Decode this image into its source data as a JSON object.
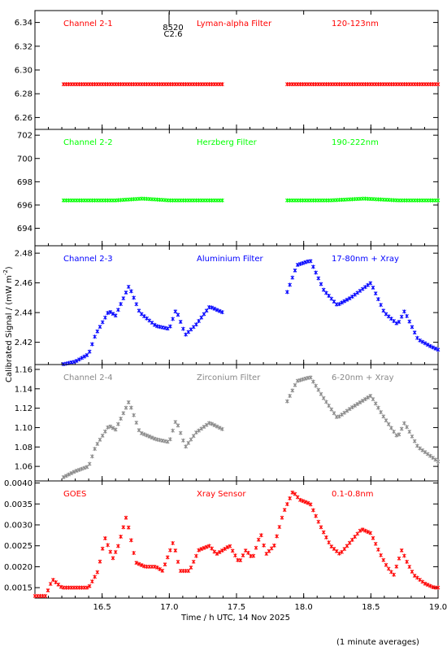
{
  "figure": {
    "ylabel_prefix": "Calibrated Signal / (mW m",
    "ylabel_exp": "-2",
    "ylabel_suffix": ")",
    "xlabel": "Time / h UTC, 14 Nov 2025",
    "footnote": "(1 minute averages)",
    "event_label_1": "8520",
    "event_label_2": "C2.6"
  },
  "chart_data": [
    {
      "type": "scatter",
      "color": "#ff0000",
      "labels": [
        "Channel 2-1",
        "Lyman-alpha Filter",
        "120-123nm"
      ],
      "ylim": [
        6.25,
        6.35
      ],
      "yticks": [
        "6.26",
        "6.28",
        "6.30",
        "6.32",
        "6.34"
      ],
      "xlim": [
        16.0,
        19.0
      ],
      "gap": [
        17.4,
        17.87
      ],
      "series": [
        {
          "x": [
            16.2,
            16.6,
            17.0,
            17.4,
            17.87,
            18.3,
            18.7,
            19.0
          ],
          "y": [
            6.288,
            6.288,
            6.288,
            6.288,
            6.288,
            6.288,
            6.288,
            6.288
          ]
        }
      ]
    },
    {
      "type": "scatter",
      "color": "#00ff00",
      "labels": [
        "Channel 2-2",
        "Herzberg Filter",
        "190-222nm"
      ],
      "ylim": [
        692.5,
        702.5
      ],
      "yticks": [
        "694",
        "696",
        "698",
        "700",
        "702"
      ],
      "xlim": [
        16.0,
        19.0
      ],
      "gap": [
        17.4,
        17.87
      ],
      "series": [
        {
          "x": [
            16.2,
            16.6,
            16.8,
            17.0,
            17.4,
            17.87,
            18.2,
            18.45,
            18.7,
            19.0
          ],
          "y": [
            696.4,
            696.4,
            696.55,
            696.4,
            696.4,
            696.4,
            696.4,
            696.55,
            696.4,
            696.4
          ]
        }
      ]
    },
    {
      "type": "scatter",
      "color": "#0000ff",
      "labels": [
        "Channel 2-3",
        "Aluminium Filter",
        "17-80nm + Xray"
      ],
      "ylim": [
        2.405,
        2.485
      ],
      "yticks": [
        "2.42",
        "2.44",
        "2.46",
        "2.48"
      ],
      "xlim": [
        16.0,
        19.0
      ],
      "gap": [
        17.4,
        17.87
      ],
      "series": [
        {
          "x": [
            16.2,
            16.3,
            16.4,
            16.45,
            16.55,
            16.6,
            16.7,
            16.78,
            16.9,
            17.0,
            17.05,
            17.12,
            17.2,
            17.3,
            17.4,
            17.87,
            17.95,
            18.05,
            18.15,
            18.25,
            18.35,
            18.5,
            18.6,
            18.7,
            18.75,
            18.85,
            18.95,
            19.0
          ],
          "y": [
            2.405,
            2.407,
            2.412,
            2.425,
            2.441,
            2.438,
            2.458,
            2.44,
            2.431,
            2.429,
            2.442,
            2.425,
            2.432,
            2.444,
            2.44,
            2.452,
            2.472,
            2.475,
            2.455,
            2.445,
            2.45,
            2.46,
            2.44,
            2.432,
            2.441,
            2.422,
            2.417,
            2.415
          ]
        }
      ]
    },
    {
      "type": "scatter",
      "color": "#888888",
      "labels": [
        "Channel 2-4",
        "Zirconium Filter",
        "6-20nm + Xray"
      ],
      "ylim": [
        1.045,
        1.165
      ],
      "yticks": [
        "1.06",
        "1.08",
        "1.10",
        "1.12",
        "1.14",
        "1.16"
      ],
      "xlim": [
        16.0,
        19.0
      ],
      "gap": [
        17.4,
        17.87
      ],
      "series": [
        {
          "x": [
            16.2,
            16.3,
            16.4,
            16.45,
            16.55,
            16.6,
            16.7,
            16.78,
            16.9,
            17.0,
            17.05,
            17.12,
            17.2,
            17.3,
            17.4,
            17.87,
            17.95,
            18.05,
            18.15,
            18.25,
            18.35,
            18.5,
            18.6,
            18.7,
            18.75,
            18.85,
            18.95,
            19.0
          ],
          "y": [
            1.048,
            1.055,
            1.06,
            1.08,
            1.102,
            1.098,
            1.127,
            1.095,
            1.088,
            1.085,
            1.108,
            1.08,
            1.095,
            1.105,
            1.098,
            1.125,
            1.148,
            1.152,
            1.13,
            1.11,
            1.12,
            1.133,
            1.11,
            1.09,
            1.105,
            1.08,
            1.07,
            1.065
          ]
        }
      ]
    },
    {
      "type": "scatter",
      "color": "#ff0000",
      "labels": [
        "GOES",
        "Xray Sensor",
        "0.1-0.8nm"
      ],
      "ylim": [
        0.00125,
        0.00405
      ],
      "yticks": [
        "0.0015",
        "0.0020",
        "0.0025",
        "0.0030",
        "0.0035",
        "0.0040"
      ],
      "xlim": [
        16.0,
        19.0
      ],
      "series": [
        {
          "x": [
            16.0,
            16.08,
            16.13,
            16.2,
            16.3,
            16.4,
            16.47,
            16.52,
            16.58,
            16.62,
            16.68,
            16.75,
            16.82,
            16.9,
            16.95,
            17.03,
            17.08,
            17.15,
            17.22,
            17.3,
            17.35,
            17.45,
            17.52,
            17.57,
            17.62,
            17.68,
            17.72,
            17.78,
            17.85,
            17.92,
            17.97,
            18.05,
            18.12,
            18.2,
            18.27,
            18.35,
            18.43,
            18.5,
            18.57,
            18.62,
            18.67,
            18.73,
            18.77,
            18.82,
            18.9,
            18.97,
            19.0
          ],
          "y": [
            0.0013,
            0.0013,
            0.0017,
            0.0015,
            0.0015,
            0.0015,
            0.0019,
            0.0027,
            0.0022,
            0.0025,
            0.0032,
            0.0021,
            0.002,
            0.002,
            0.0019,
            0.0026,
            0.0019,
            0.0019,
            0.0024,
            0.0025,
            0.0023,
            0.0025,
            0.0021,
            0.0024,
            0.0022,
            0.0028,
            0.0023,
            0.0025,
            0.0033,
            0.0038,
            0.0036,
            0.0035,
            0.003,
            0.0025,
            0.0023,
            0.0026,
            0.0029,
            0.0028,
            0.0023,
            0.002,
            0.0018,
            0.0024,
            0.0021,
            0.0018,
            0.0016,
            0.0015,
            0.0015
          ]
        }
      ]
    }
  ],
  "xaxis": {
    "xlim": [
      16.0,
      19.0
    ],
    "ticks": [
      "16.5",
      "17.0",
      "17.5",
      "18.0",
      "18.5",
      "19.0"
    ]
  }
}
